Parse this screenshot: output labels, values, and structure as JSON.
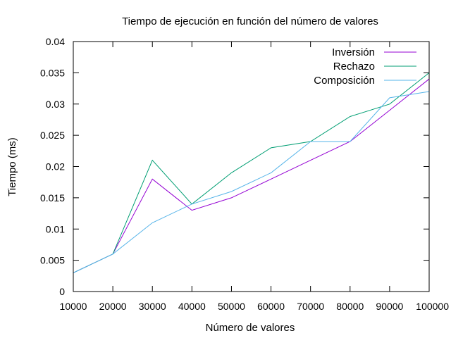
{
  "chart_data": {
    "type": "line",
    "title": "Tiempo de ejecución en función del número de valores",
    "xlabel": "Número de valores",
    "ylabel": "Tiempo (ms)",
    "x": [
      10000,
      20000,
      30000,
      40000,
      50000,
      60000,
      70000,
      80000,
      90000,
      100000
    ],
    "xlim": [
      10000,
      100000
    ],
    "ylim": [
      0,
      0.04
    ],
    "xticks": [
      10000,
      20000,
      30000,
      40000,
      50000,
      60000,
      70000,
      80000,
      90000,
      100000
    ],
    "xtick_labels": [
      "10000",
      "20000",
      "30000",
      "40000",
      "50000",
      "60000",
      "70000",
      "80000",
      "90000",
      "100000"
    ],
    "yticks": [
      0,
      0.005,
      0.01,
      0.015,
      0.02,
      0.025,
      0.03,
      0.035,
      0.04
    ],
    "ytick_labels": [
      "0",
      "0.005",
      "0.01",
      "0.015",
      "0.02",
      "0.025",
      "0.03",
      "0.035",
      "0.04"
    ],
    "grid": false,
    "legend_position": "top-right",
    "series": [
      {
        "name": "Inversión",
        "color": "#9400d3",
        "values": [
          0.003,
          0.006,
          0.018,
          0.013,
          0.015,
          0.018,
          0.021,
          0.024,
          0.029,
          0.034
        ]
      },
      {
        "name": "Rechazo",
        "color": "#009e73",
        "values": [
          0.003,
          0.006,
          0.021,
          0.014,
          0.019,
          0.023,
          0.024,
          0.028,
          0.03,
          0.035
        ]
      },
      {
        "name": "Composición",
        "color": "#56b4e9",
        "values": [
          0.003,
          0.006,
          0.011,
          0.014,
          0.016,
          0.019,
          0.024,
          0.024,
          0.031,
          0.032
        ]
      }
    ]
  }
}
